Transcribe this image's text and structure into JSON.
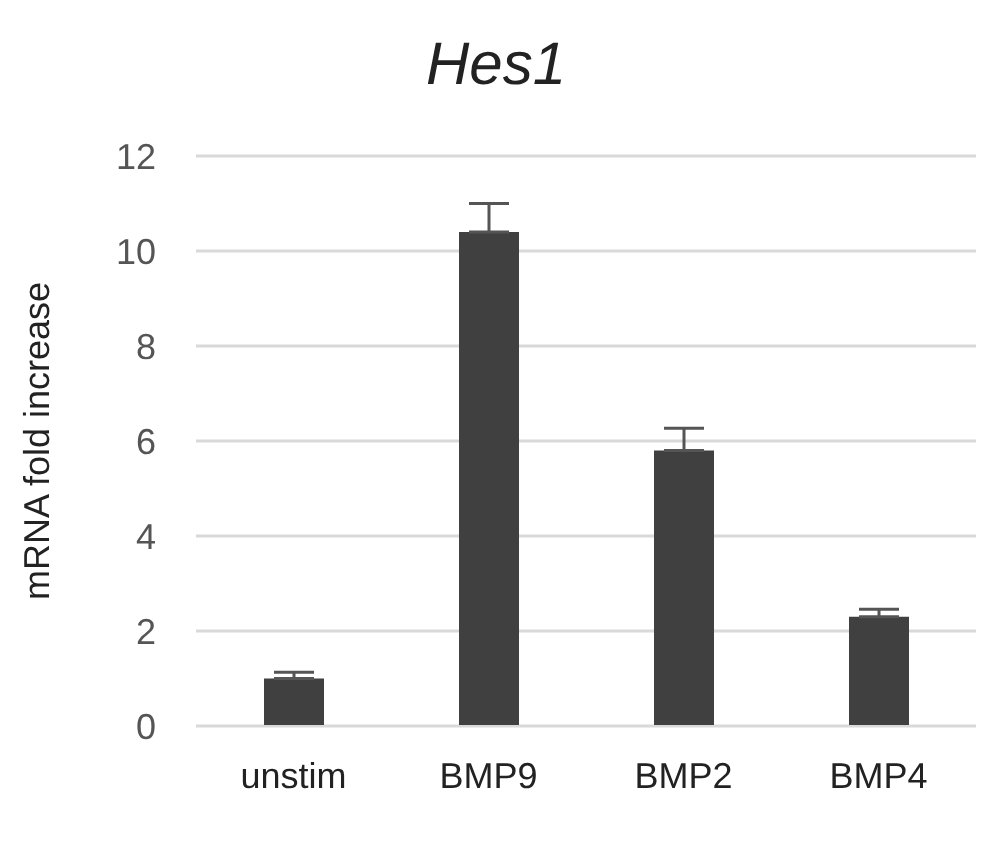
{
  "chart_data": {
    "type": "bar",
    "title": "Hes1",
    "ylabel": "mRNA fold increase",
    "categories": [
      "unstim",
      "BMP9",
      "BMP2",
      "BMP4"
    ],
    "values": [
      1.0,
      10.4,
      5.8,
      2.3
    ],
    "errors": [
      [
        1.0,
        1.13
      ],
      [
        10.4,
        11.0
      ],
      [
        5.8,
        6.27
      ],
      [
        2.3,
        2.46
      ]
    ],
    "color": "#404040",
    "ylim": [
      0,
      12
    ],
    "yticks": [
      0,
      2,
      4,
      6,
      8,
      10,
      12
    ],
    "grid": "y"
  }
}
